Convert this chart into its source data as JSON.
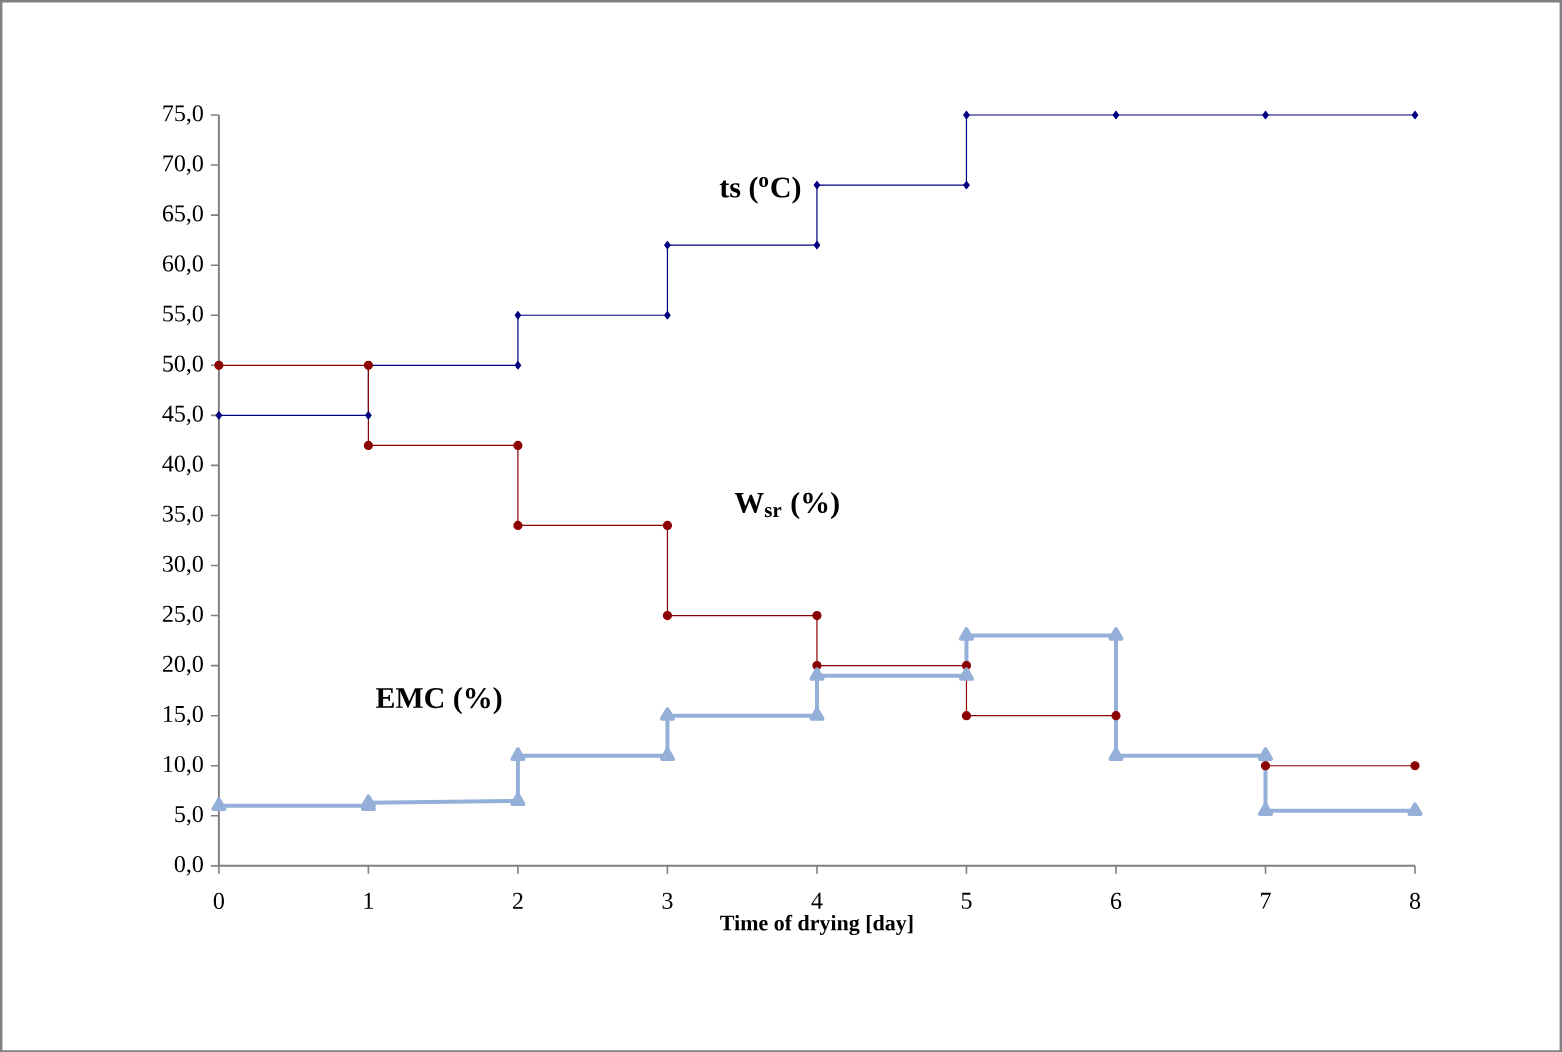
{
  "chart_data": {
    "type": "line",
    "xlabel": "Time of drying [day]",
    "xlim": [
      0,
      8
    ],
    "xticks": [
      0,
      1,
      2,
      3,
      4,
      5,
      6,
      7,
      8
    ],
    "ylim": [
      0,
      75
    ],
    "yticks": [
      {
        "value": 0,
        "label": "0,0"
      },
      {
        "value": 5,
        "label": "5,0"
      },
      {
        "value": 10,
        "label": "10,0"
      },
      {
        "value": 15,
        "label": "15,0"
      },
      {
        "value": 20,
        "label": "20,0"
      },
      {
        "value": 25,
        "label": "25,0"
      },
      {
        "value": 30,
        "label": "30,0"
      },
      {
        "value": 35,
        "label": "35,0"
      },
      {
        "value": 40,
        "label": "40,0"
      },
      {
        "value": 45,
        "label": "45,0"
      },
      {
        "value": 50,
        "label": "50,0"
      },
      {
        "value": 55,
        "label": "55,0"
      },
      {
        "value": 60,
        "label": "60,0"
      },
      {
        "value": 65,
        "label": "65,0"
      },
      {
        "value": 70,
        "label": "70,0"
      },
      {
        "value": 75,
        "label": "75,0"
      }
    ],
    "grid": false,
    "line_style": "solid",
    "series": [
      {
        "name": "ts ($^{o}$C)",
        "color": "#000080",
        "marker": "diamond",
        "x": [
          0,
          1,
          1,
          2,
          2,
          3,
          3,
          4,
          4,
          5,
          5,
          6,
          7,
          8
        ],
        "values": [
          45,
          45,
          50,
          50,
          55,
          55,
          62,
          62,
          68,
          68,
          75,
          75,
          75,
          75
        ]
      },
      {
        "name": "W$_{sr}$ (%)",
        "color": "#8b0000",
        "marker": "circle",
        "x": [
          0,
          1,
          1,
          2,
          2,
          3,
          3,
          4,
          4,
          5,
          5,
          6,
          6,
          7,
          7,
          8
        ],
        "values": [
          50,
          50,
          42,
          42,
          34,
          34,
          25,
          25,
          20,
          20,
          15,
          15,
          11,
          11,
          10,
          10
        ]
      },
      {
        "name": "EMC (%)",
        "color": "#95b0d8",
        "marker": "triangle",
        "x": [
          0,
          1,
          1,
          2,
          2,
          3,
          3,
          4,
          4,
          5,
          5,
          6,
          6,
          7,
          7,
          8
        ],
        "values": [
          6,
          6,
          6.3,
          6.5,
          11,
          11,
          15,
          15,
          19,
          19,
          23,
          23,
          11,
          11,
          5.5,
          5.5
        ]
      }
    ]
  }
}
